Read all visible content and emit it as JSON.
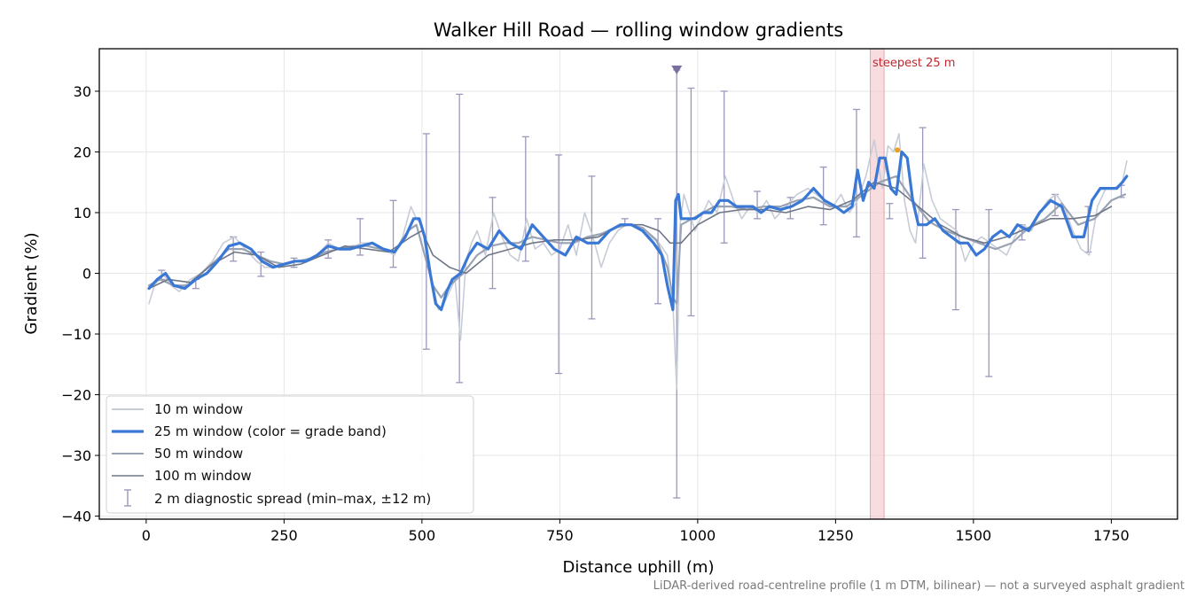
{
  "chart_data": {
    "type": "line",
    "title": "Walker Hill Road — rolling window gradients",
    "xlabel": "Distance uphill (m)",
    "ylabel": "Gradient (%)",
    "xlim": [
      -85,
      1870
    ],
    "ylim": [
      -40.5,
      37
    ],
    "x_ticks": [
      0,
      250,
      500,
      750,
      1000,
      1250,
      1500,
      1750
    ],
    "y_ticks": [
      30,
      20,
      10,
      0,
      -10,
      -20,
      -30,
      -40
    ],
    "x_tick_labels": [
      "0",
      "250",
      "500",
      "750",
      "1000",
      "1250",
      "1500",
      "1750"
    ],
    "y_tick_labels": [
      "30",
      "20",
      "10",
      "0",
      "−10",
      "−20",
      "−30",
      "−40"
    ],
    "grid": true,
    "legend_placement": "lower-left",
    "footnote": "LiDAR-derived road-centreline profile (1 m DTM, bilinear) — not a surveyed asphalt gradient",
    "series": [
      {
        "name": "10 m window",
        "color": "#c7ccd6",
        "x": [
          5,
          15,
          30,
          45,
          60,
          80,
          100,
          120,
          140,
          160,
          180,
          200,
          215,
          230,
          250,
          270,
          290,
          310,
          330,
          350,
          370,
          390,
          410,
          430,
          450,
          465,
          480,
          490,
          500,
          510,
          520,
          530,
          540,
          550,
          560,
          570,
          580,
          590,
          600,
          615,
          630,
          645,
          660,
          675,
          690,
          705,
          720,
          735,
          750,
          765,
          780,
          795,
          810,
          825,
          840,
          855,
          870,
          885,
          900,
          915,
          930,
          945,
          955,
          962,
          968,
          975,
          985,
          995,
          1005,
          1020,
          1035,
          1050,
          1065,
          1080,
          1095,
          1110,
          1125,
          1140,
          1160,
          1180,
          1200,
          1215,
          1230,
          1245,
          1260,
          1275,
          1290,
          1305,
          1320,
          1335,
          1345,
          1355,
          1365,
          1375,
          1385,
          1395,
          1410,
          1425,
          1440,
          1455,
          1470,
          1485,
          1500,
          1515,
          1530,
          1545,
          1560,
          1575,
          1590,
          1605,
          1620,
          1635,
          1650,
          1665,
          1680,
          1695,
          1710,
          1725,
          1740,
          1755,
          1770,
          1778
        ],
        "y": [
          -5,
          -2,
          0,
          -2,
          -3,
          -1,
          0,
          2,
          5,
          6,
          4,
          2,
          1,
          1,
          1.5,
          2,
          2,
          3,
          5,
          4,
          4,
          5,
          5,
          4,
          3,
          6,
          11,
          9,
          8,
          2,
          -2,
          -6,
          -5,
          -3,
          -1,
          -11,
          2,
          5,
          7,
          3,
          10,
          6,
          3,
          2,
          9,
          4,
          5,
          3,
          4,
          8,
          3,
          10,
          6,
          1,
          5,
          7,
          8,
          8,
          7,
          6,
          5,
          3,
          -5,
          -19,
          8,
          13,
          10,
          7,
          9,
          12,
          10,
          16,
          12,
          9,
          11,
          10,
          12,
          9,
          11,
          13,
          14,
          13,
          12,
          11,
          13,
          10,
          12,
          16,
          22,
          14,
          21,
          20,
          23,
          12,
          7,
          5,
          18,
          12,
          9,
          8,
          7,
          2,
          5,
          6,
          5,
          4,
          3,
          6,
          8,
          7,
          10,
          12,
          13,
          11,
          7,
          4,
          3,
          11,
          14,
          14,
          15,
          18.5
        ]
      },
      {
        "name": "25 m window (color = grade band)",
        "color": "#3a78d6",
        "x": [
          5,
          20,
          35,
          50,
          70,
          90,
          110,
          130,
          150,
          170,
          190,
          210,
          230,
          250,
          270,
          290,
          310,
          330,
          350,
          370,
          390,
          410,
          430,
          450,
          470,
          485,
          495,
          505,
          515,
          525,
          535,
          545,
          555,
          570,
          585,
          600,
          620,
          640,
          660,
          680,
          700,
          720,
          740,
          760,
          780,
          800,
          820,
          840,
          860,
          880,
          900,
          920,
          935,
          945,
          955,
          960,
          965,
          970,
          980,
          995,
          1010,
          1025,
          1040,
          1055,
          1070,
          1085,
          1100,
          1115,
          1130,
          1150,
          1170,
          1190,
          1210,
          1230,
          1250,
          1265,
          1280,
          1290,
          1300,
          1310,
          1320,
          1330,
          1340,
          1350,
          1360,
          1370,
          1380,
          1390,
          1400,
          1415,
          1430,
          1445,
          1460,
          1475,
          1490,
          1505,
          1520,
          1535,
          1550,
          1565,
          1580,
          1600,
          1620,
          1640,
          1660,
          1680,
          1700,
          1715,
          1730,
          1745,
          1760,
          1770,
          1778
        ],
        "y": [
          -2.5,
          -1,
          0,
          -2,
          -2.5,
          -1,
          0,
          2,
          4.5,
          5,
          4,
          2,
          1,
          1.5,
          2,
          2,
          3,
          4.5,
          4,
          4,
          4.5,
          5,
          4,
          3.5,
          6,
          9,
          9,
          6,
          0,
          -5,
          -6,
          -3,
          -1,
          0,
          3,
          5,
          4,
          7,
          5,
          4,
          8,
          6,
          4,
          3,
          6,
          5,
          5,
          7,
          8,
          8,
          7,
          5,
          3,
          -2,
          -6,
          12,
          13,
          9,
          9,
          9,
          10,
          10,
          12,
          12,
          11,
          11,
          11,
          10,
          11,
          10.5,
          11,
          12,
          14,
          12,
          11,
          10,
          11,
          17,
          12,
          15,
          14,
          19,
          19,
          14,
          13,
          20,
          19,
          12,
          8,
          8,
          9,
          7,
          6,
          5,
          5,
          3,
          4,
          6,
          7,
          6,
          8,
          7,
          10,
          12,
          11,
          6,
          6,
          12,
          14,
          14,
          14,
          15,
          16
        ]
      },
      {
        "name": "50 m window",
        "color": "#9aa3b3",
        "x": [
          5,
          25,
          50,
          75,
          100,
          125,
          150,
          175,
          200,
          225,
          250,
          275,
          300,
          325,
          350,
          375,
          400,
          425,
          450,
          475,
          490,
          505,
          520,
          535,
          550,
          575,
          600,
          625,
          650,
          675,
          700,
          725,
          750,
          775,
          800,
          825,
          850,
          875,
          900,
          925,
          945,
          955,
          962,
          970,
          990,
          1010,
          1030,
          1060,
          1090,
          1120,
          1150,
          1180,
          1210,
          1240,
          1270,
          1300,
          1330,
          1360,
          1390,
          1420,
          1450,
          1480,
          1510,
          1540,
          1570,
          1600,
          1630,
          1660,
          1690,
          1720,
          1750,
          1775
        ],
        "y": [
          -2,
          -1,
          -2,
          -2,
          0,
          2,
          4,
          4,
          3,
          2,
          1.5,
          2,
          2.5,
          3.5,
          4,
          4.5,
          4.5,
          4,
          3.5,
          7,
          8,
          3,
          -2,
          -4,
          -2,
          0,
          3,
          4.5,
          5,
          5,
          6,
          5.5,
          5,
          5,
          6,
          6.5,
          7.5,
          8,
          7.5,
          5.5,
          1,
          -4,
          -5,
          8,
          9,
          10,
          11,
          11,
          10.5,
          11,
          11,
          12,
          12.5,
          11,
          11,
          13,
          15,
          16,
          12,
          8.5,
          7,
          6,
          5,
          4,
          5,
          7.5,
          9,
          11.5,
          8,
          9,
          12,
          13
        ]
      },
      {
        "name": "100 m window",
        "color": "#6f7787",
        "x": [
          5,
          40,
          80,
          120,
          160,
          200,
          240,
          280,
          320,
          360,
          400,
          440,
          480,
          500,
          520,
          550,
          580,
          620,
          660,
          700,
          740,
          780,
          820,
          860,
          900,
          930,
          950,
          970,
          1000,
          1040,
          1080,
          1120,
          1160,
          1200,
          1240,
          1280,
          1320,
          1360,
          1400,
          1440,
          1480,
          1520,
          1560,
          1600,
          1640,
          1680,
          1720,
          1750
        ],
        "y": [
          -2.5,
          -1,
          -1.5,
          1.5,
          3.5,
          3,
          1,
          1.5,
          3,
          4.5,
          4,
          3.5,
          6,
          7,
          3,
          1,
          0,
          3,
          4,
          5,
          5.5,
          5.5,
          6,
          8,
          8,
          7,
          5,
          5,
          8,
          10,
          10.5,
          10.5,
          10,
          11,
          10.5,
          12,
          15,
          14,
          11,
          8,
          6,
          5,
          6,
          7.5,
          9,
          9,
          9.5,
          11
        ]
      }
    ],
    "error_bars": {
      "name": "2 m diagnostic spread (min–max, ±12 m)",
      "color": "#9b98bb",
      "x": [
        28,
        90,
        158,
        208,
        268,
        330,
        388,
        448,
        508,
        568,
        628,
        688,
        748,
        808,
        868,
        928,
        962,
        988,
        1048,
        1108,
        1168,
        1228,
        1288,
        1348,
        1408,
        1468,
        1528,
        1588,
        1648,
        1708,
        1768
      ],
      "low": [
        -1,
        -2.5,
        2,
        -0.5,
        1,
        2.5,
        3,
        1,
        -12.5,
        -18,
        -2.5,
        2,
        -16.5,
        -7.5,
        8,
        -5,
        -37,
        -7,
        5,
        9,
        9,
        8,
        6,
        9,
        2.5,
        -6,
        -17,
        5.5,
        9.5,
        3.5,
        12.5
      ],
      "high": [
        0.5,
        -1,
        6,
        3.5,
        2.5,
        5.5,
        9,
        12,
        23,
        29.5,
        12.5,
        22.5,
        19.5,
        16,
        9,
        9,
        33.5,
        30.5,
        30,
        13.5,
        12.5,
        17.5,
        27,
        11.5,
        24,
        10.5,
        10.5,
        8,
        13,
        11,
        14.5
      ]
    },
    "annotations": {
      "steepest_label": "steepest 25 m",
      "steepest_span": [
        1313,
        1338
      ],
      "steepest_color": "#f2c6c9",
      "steepest_text_color": "#c0272d",
      "peak_marker": {
        "x": 1362,
        "y": 20.3,
        "color": "#e8a020"
      },
      "max_marker": {
        "x": 962,
        "y": 33.5,
        "color": "#7b6f9f"
      }
    }
  }
}
